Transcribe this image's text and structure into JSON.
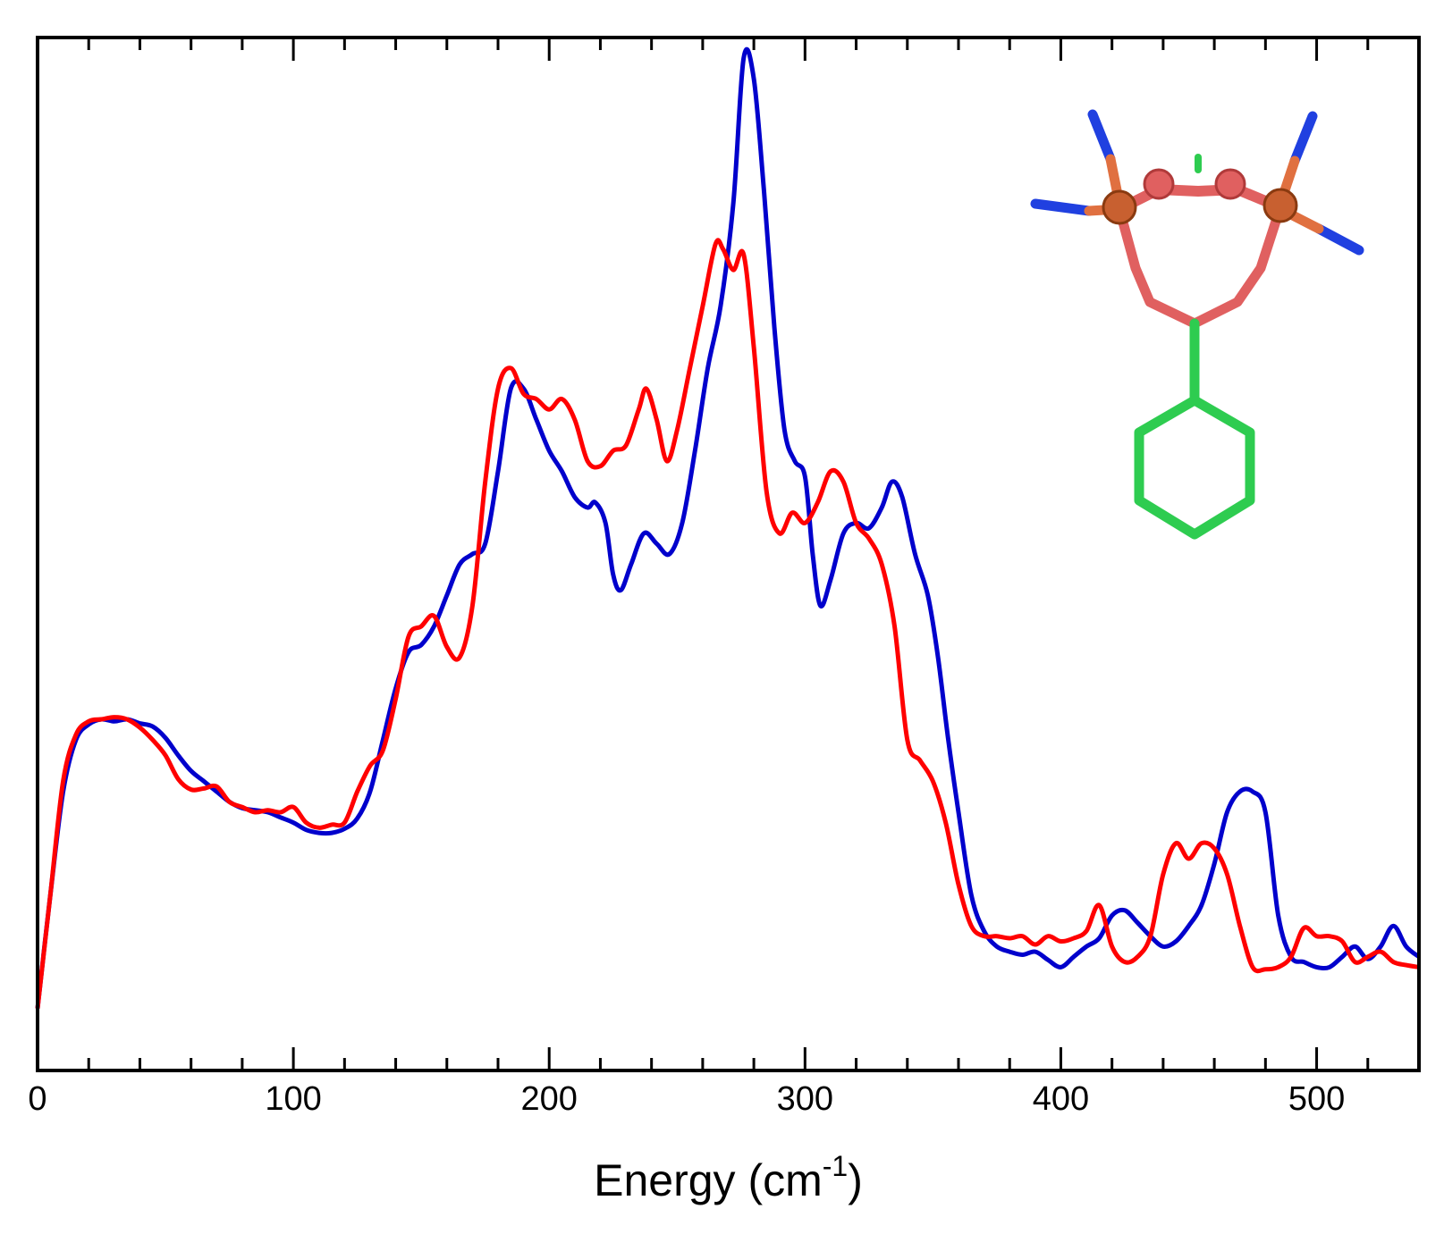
{
  "chart_data": {
    "type": "line",
    "xlabel": "Energy (cm",
    "xlabel_superscript": "-1",
    "xlabel_suffix": ")",
    "ylabel": "",
    "xlim": [
      0,
      540
    ],
    "ylim": [
      0,
      1
    ],
    "x_ticks": [
      0,
      100,
      200,
      300,
      400,
      500
    ],
    "x_minor_step": 20,
    "grid": false,
    "legend": "none",
    "series": [
      {
        "color": "#0000cc",
        "points": [
          [
            0,
            0.06
          ],
          [
            5,
            0.17
          ],
          [
            10,
            0.27
          ],
          [
            15,
            0.32
          ],
          [
            20,
            0.335
          ],
          [
            25,
            0.34
          ],
          [
            30,
            0.338
          ],
          [
            35,
            0.34
          ],
          [
            40,
            0.336
          ],
          [
            45,
            0.333
          ],
          [
            50,
            0.322
          ],
          [
            55,
            0.305
          ],
          [
            60,
            0.29
          ],
          [
            65,
            0.28
          ],
          [
            70,
            0.27
          ],
          [
            75,
            0.26
          ],
          [
            80,
            0.254
          ],
          [
            85,
            0.252
          ],
          [
            90,
            0.25
          ],
          [
            95,
            0.245
          ],
          [
            100,
            0.24
          ],
          [
            105,
            0.233
          ],
          [
            110,
            0.23
          ],
          [
            115,
            0.23
          ],
          [
            120,
            0.234
          ],
          [
            125,
            0.244
          ],
          [
            130,
            0.27
          ],
          [
            135,
            0.32
          ],
          [
            140,
            0.37
          ],
          [
            145,
            0.405
          ],
          [
            150,
            0.412
          ],
          [
            155,
            0.43
          ],
          [
            160,
            0.46
          ],
          [
            165,
            0.49
          ],
          [
            170,
            0.5
          ],
          [
            175,
            0.51
          ],
          [
            180,
            0.58
          ],
          [
            185,
            0.66
          ],
          [
            190,
            0.66
          ],
          [
            195,
            0.63
          ],
          [
            200,
            0.6
          ],
          [
            205,
            0.58
          ],
          [
            210,
            0.555
          ],
          [
            215,
            0.545
          ],
          [
            218,
            0.55
          ],
          [
            222,
            0.53
          ],
          [
            225,
            0.48
          ],
          [
            228,
            0.465
          ],
          [
            232,
            0.49
          ],
          [
            237,
            0.52
          ],
          [
            242,
            0.51
          ],
          [
            247,
            0.5
          ],
          [
            252,
            0.53
          ],
          [
            257,
            0.6
          ],
          [
            262,
            0.68
          ],
          [
            267,
            0.74
          ],
          [
            272,
            0.84
          ],
          [
            276,
            0.98
          ],
          [
            280,
            0.96
          ],
          [
            284,
            0.85
          ],
          [
            288,
            0.72
          ],
          [
            292,
            0.62
          ],
          [
            296,
            0.59
          ],
          [
            300,
            0.575
          ],
          [
            303,
            0.5
          ],
          [
            306,
            0.45
          ],
          [
            310,
            0.475
          ],
          [
            315,
            0.52
          ],
          [
            320,
            0.53
          ],
          [
            325,
            0.525
          ],
          [
            330,
            0.545
          ],
          [
            334,
            0.57
          ],
          [
            338,
            0.555
          ],
          [
            343,
            0.5
          ],
          [
            348,
            0.46
          ],
          [
            352,
            0.4
          ],
          [
            356,
            0.32
          ],
          [
            360,
            0.25
          ],
          [
            365,
            0.17
          ],
          [
            370,
            0.135
          ],
          [
            375,
            0.12
          ],
          [
            380,
            0.115
          ],
          [
            385,
            0.112
          ],
          [
            390,
            0.115
          ],
          [
            395,
            0.107
          ],
          [
            400,
            0.1
          ],
          [
            405,
            0.11
          ],
          [
            410,
            0.12
          ],
          [
            415,
            0.128
          ],
          [
            420,
            0.15
          ],
          [
            425,
            0.155
          ],
          [
            430,
            0.143
          ],
          [
            435,
            0.13
          ],
          [
            440,
            0.12
          ],
          [
            445,
            0.125
          ],
          [
            450,
            0.14
          ],
          [
            455,
            0.16
          ],
          [
            460,
            0.2
          ],
          [
            465,
            0.25
          ],
          [
            470,
            0.27
          ],
          [
            475,
            0.27
          ],
          [
            480,
            0.25
          ],
          [
            485,
            0.15
          ],
          [
            490,
            0.11
          ],
          [
            495,
            0.105
          ],
          [
            500,
            0.1
          ],
          [
            505,
            0.1
          ],
          [
            510,
            0.11
          ],
          [
            515,
            0.12
          ],
          [
            520,
            0.108
          ],
          [
            525,
            0.12
          ],
          [
            530,
            0.14
          ],
          [
            535,
            0.12
          ],
          [
            540,
            0.11
          ]
        ]
      },
      {
        "color": "#ff0000",
        "points": [
          [
            0,
            0.06
          ],
          [
            5,
            0.17
          ],
          [
            10,
            0.28
          ],
          [
            15,
            0.325
          ],
          [
            20,
            0.338
          ],
          [
            25,
            0.34
          ],
          [
            30,
            0.342
          ],
          [
            35,
            0.34
          ],
          [
            40,
            0.332
          ],
          [
            45,
            0.32
          ],
          [
            50,
            0.305
          ],
          [
            55,
            0.282
          ],
          [
            60,
            0.272
          ],
          [
            65,
            0.273
          ],
          [
            70,
            0.275
          ],
          [
            75,
            0.26
          ],
          [
            80,
            0.255
          ],
          [
            85,
            0.25
          ],
          [
            90,
            0.252
          ],
          [
            95,
            0.25
          ],
          [
            100,
            0.255
          ],
          [
            105,
            0.24
          ],
          [
            110,
            0.235
          ],
          [
            115,
            0.238
          ],
          [
            120,
            0.24
          ],
          [
            125,
            0.27
          ],
          [
            130,
            0.295
          ],
          [
            135,
            0.31
          ],
          [
            140,
            0.36
          ],
          [
            145,
            0.42
          ],
          [
            150,
            0.43
          ],
          [
            155,
            0.44
          ],
          [
            160,
            0.41
          ],
          [
            165,
            0.4
          ],
          [
            170,
            0.45
          ],
          [
            175,
            0.57
          ],
          [
            180,
            0.66
          ],
          [
            185,
            0.68
          ],
          [
            190,
            0.655
          ],
          [
            195,
            0.65
          ],
          [
            200,
            0.64
          ],
          [
            205,
            0.65
          ],
          [
            210,
            0.63
          ],
          [
            215,
            0.59
          ],
          [
            220,
            0.585
          ],
          [
            225,
            0.6
          ],
          [
            230,
            0.605
          ],
          [
            235,
            0.64
          ],
          [
            238,
            0.66
          ],
          [
            242,
            0.63
          ],
          [
            246,
            0.59
          ],
          [
            250,
            0.62
          ],
          [
            255,
            0.68
          ],
          [
            260,
            0.74
          ],
          [
            265,
            0.8
          ],
          [
            268,
            0.795
          ],
          [
            272,
            0.775
          ],
          [
            276,
            0.79
          ],
          [
            280,
            0.7
          ],
          [
            285,
            0.56
          ],
          [
            290,
            0.52
          ],
          [
            295,
            0.54
          ],
          [
            300,
            0.53
          ],
          [
            305,
            0.55
          ],
          [
            310,
            0.58
          ],
          [
            315,
            0.57
          ],
          [
            320,
            0.53
          ],
          [
            325,
            0.515
          ],
          [
            330,
            0.49
          ],
          [
            335,
            0.43
          ],
          [
            340,
            0.32
          ],
          [
            345,
            0.3
          ],
          [
            350,
            0.28
          ],
          [
            355,
            0.24
          ],
          [
            360,
            0.18
          ],
          [
            365,
            0.14
          ],
          [
            370,
            0.13
          ],
          [
            375,
            0.13
          ],
          [
            380,
            0.128
          ],
          [
            385,
            0.13
          ],
          [
            390,
            0.122
          ],
          [
            395,
            0.13
          ],
          [
            400,
            0.125
          ],
          [
            405,
            0.128
          ],
          [
            410,
            0.135
          ],
          [
            415,
            0.16
          ],
          [
            420,
            0.12
          ],
          [
            425,
            0.105
          ],
          [
            430,
            0.11
          ],
          [
            435,
            0.13
          ],
          [
            440,
            0.19
          ],
          [
            445,
            0.22
          ],
          [
            450,
            0.205
          ],
          [
            455,
            0.22
          ],
          [
            460,
            0.215
          ],
          [
            465,
            0.19
          ],
          [
            470,
            0.14
          ],
          [
            475,
            0.1
          ],
          [
            480,
            0.098
          ],
          [
            485,
            0.1
          ],
          [
            490,
            0.11
          ],
          [
            495,
            0.138
          ],
          [
            500,
            0.13
          ],
          [
            505,
            0.13
          ],
          [
            510,
            0.125
          ],
          [
            515,
            0.105
          ],
          [
            520,
            0.11
          ],
          [
            525,
            0.115
          ],
          [
            530,
            0.105
          ],
          [
            535,
            0.102
          ],
          [
            540,
            0.1
          ]
        ]
      }
    ]
  },
  "inset": {
    "description_icon": "molecular-structure-icon",
    "colors": {
      "metal": "#e07040",
      "oxygen": "#e06060",
      "carbon": "#2ecc50",
      "nitrogen": "#2040e0"
    }
  }
}
